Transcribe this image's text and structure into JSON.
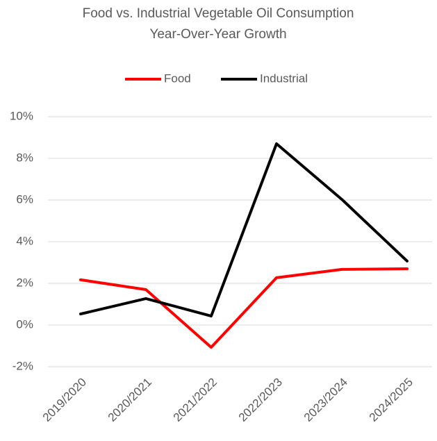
{
  "chart_data": {
    "type": "line",
    "title": [
      "Food vs. Industrial Vegetable Oil Consumption",
      "Year-Over-Year Growth"
    ],
    "categories": [
      "2019/2020",
      "2020/2021",
      "2021/2022",
      "2022/2023",
      "2023/2024",
      "2024/2025"
    ],
    "series": [
      {
        "name": "Food",
        "color": "#ff0000",
        "values": [
          2.17,
          1.7,
          -1.07,
          2.27,
          2.67,
          2.7
        ]
      },
      {
        "name": "Industrial",
        "color": "#000000",
        "values": [
          0.53,
          1.27,
          0.43,
          8.7,
          6.03,
          3.07
        ]
      }
    ],
    "ylim": [
      -2,
      10
    ],
    "yticks": [
      {
        "value": -2,
        "label": "-2%"
      },
      {
        "value": 0,
        "label": "0%"
      },
      {
        "value": 2,
        "label": "2%"
      },
      {
        "value": 4,
        "label": "4%"
      },
      {
        "value": 6,
        "label": "6%"
      },
      {
        "value": 8,
        "label": "8%"
      },
      {
        "value": 10,
        "label": "10%"
      }
    ],
    "grid": true,
    "legend": "top"
  }
}
